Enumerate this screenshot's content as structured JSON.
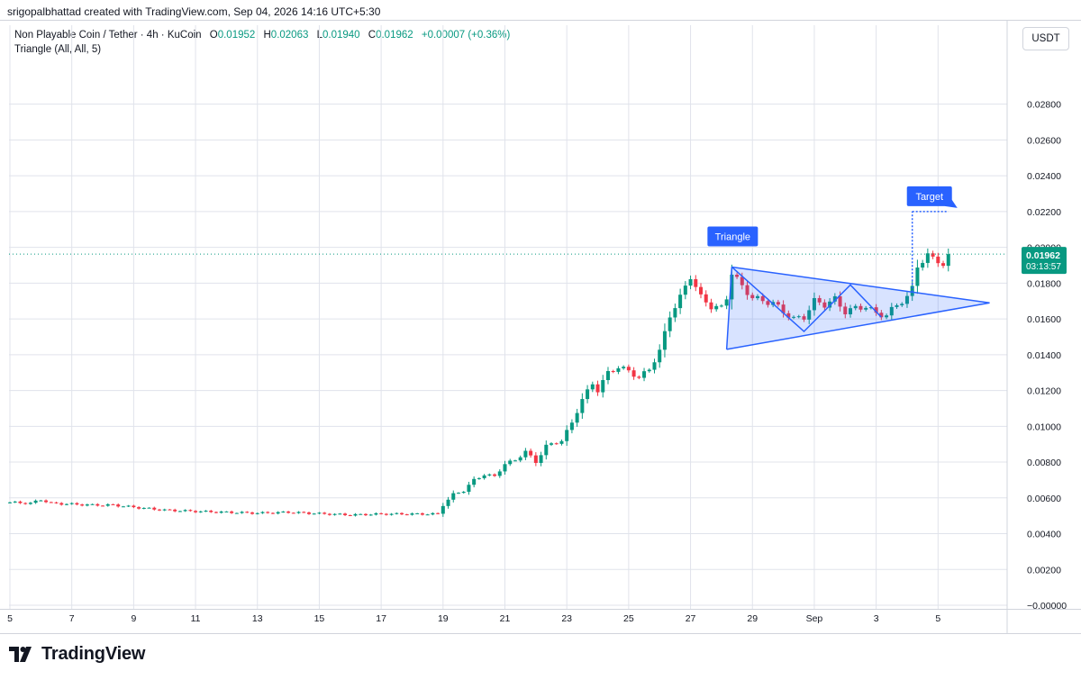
{
  "header": {
    "created_by": "srigopalbhattad created with TradingView.com, Sep 04, 2026 14:16 UTC+5:30"
  },
  "legend": {
    "symbol": "Non Playable Coin / Tether · 4h · KuCoin",
    "o_label": "O",
    "o_value": "0.01952",
    "h_label": "H",
    "h_value": "0.02063",
    "l_label": "L",
    "l_value": "0.01940",
    "c_label": "C",
    "c_value": "0.01962",
    "change": "+0.00007 (+0.36%)",
    "indicator": "Triangle (All, All, 5)"
  },
  "currency_button": "USDT",
  "price_tag": {
    "price": "0.01962",
    "countdown": "03:13:57"
  },
  "annotations": {
    "triangle_label": "Triangle",
    "target_label": "Target"
  },
  "logo_text": "TradingView",
  "colors": {
    "up": "#089981",
    "down": "#F23645",
    "pattern": "#2962FF",
    "grid": "#e0e3eb"
  },
  "chart_data": {
    "type": "candlestick",
    "symbol": "NPC/USDT",
    "timeframe": "4h",
    "x_tick_labels": [
      "5",
      "7",
      "9",
      "11",
      "13",
      "15",
      "17",
      "19",
      "21",
      "23",
      "25",
      "27",
      "29",
      "Sep",
      "3",
      "5"
    ],
    "y_tick_labels": [
      "0.02800",
      "0.02600",
      "0.02400",
      "0.02200",
      "0.02000",
      "0.01800",
      "0.01600",
      "0.01400",
      "0.01200",
      "0.01000",
      "0.00800",
      "0.00600",
      "0.00400",
      "0.00200",
      "−0.00000"
    ],
    "ylim": [
      -0.0002,
      0.0308
    ],
    "last_price": 0.01962,
    "grid": true,
    "price_path": [
      [
        0,
        0.00575
      ],
      [
        4,
        0.0057
      ],
      [
        6,
        0.0059
      ],
      [
        8,
        0.0057
      ],
      [
        12,
        0.00565
      ],
      [
        16,
        0.0056
      ],
      [
        20,
        0.0056
      ],
      [
        24,
        0.00548
      ],
      [
        30,
        0.00532
      ],
      [
        36,
        0.00525
      ],
      [
        42,
        0.0052
      ],
      [
        48,
        0.00515
      ],
      [
        54,
        0.0052
      ],
      [
        60,
        0.00512
      ],
      [
        66,
        0.00505
      ],
      [
        72,
        0.0051
      ],
      [
        83,
        0.0051
      ],
      [
        84,
        0.0056
      ],
      [
        86,
        0.0062
      ],
      [
        88,
        0.0064
      ],
      [
        90,
        0.007
      ],
      [
        92,
        0.0073
      ],
      [
        94,
        0.0072
      ],
      [
        96,
        0.0079
      ],
      [
        98,
        0.0081
      ],
      [
        100,
        0.0086
      ],
      [
        102,
        0.008
      ],
      [
        104,
        0.0089
      ],
      [
        105,
        0.009
      ],
      [
        107,
        0.0092
      ],
      [
        109,
        0.0102
      ],
      [
        111,
        0.0115
      ],
      [
        113,
        0.0124
      ],
      [
        114,
        0.012
      ],
      [
        116,
        0.013
      ],
      [
        118,
        0.0133
      ],
      [
        120,
        0.0131
      ],
      [
        122,
        0.0127
      ],
      [
        124,
        0.0132
      ],
      [
        126,
        0.0142
      ],
      [
        128,
        0.0162
      ],
      [
        130,
        0.0172
      ],
      [
        132,
        0.0184
      ],
      [
        134,
        0.0172
      ],
      [
        136,
        0.0167
      ],
      [
        138,
        0.0166
      ],
      [
        139,
        0.0172
      ],
      [
        140,
        0.0186
      ],
      [
        142,
        0.0178
      ],
      [
        144,
        0.0172
      ],
      [
        146,
        0.017
      ],
      [
        148,
        0.0169
      ],
      [
        150,
        0.0164
      ],
      [
        152,
        0.016
      ],
      [
        154,
        0.0161
      ],
      [
        156,
        0.017
      ],
      [
        158,
        0.0168
      ],
      [
        160,
        0.0171
      ],
      [
        162,
        0.0164
      ],
      [
        164,
        0.0166
      ],
      [
        166,
        0.0167
      ],
      [
        168,
        0.0163
      ],
      [
        170,
        0.0162
      ],
      [
        172,
        0.0168
      ],
      [
        174,
        0.0172
      ],
      [
        175,
        0.0177
      ],
      [
        176,
        0.019
      ],
      [
        178,
        0.0195
      ],
      [
        180,
        0.0193
      ],
      [
        181,
        0.019
      ],
      [
        182,
        0.01962
      ]
    ],
    "triangle_pattern": {
      "points": [
        [
          139,
          0.0143
        ],
        [
          140,
          0.0189
        ],
        [
          154,
          0.0153
        ],
        [
          163,
          0.0179
        ],
        [
          169,
          0.0161
        ],
        [
          190,
          0.0169
        ]
      ],
      "label": "Triangle"
    },
    "target_projection": {
      "from_price": 0.0175,
      "to_price": 0.022,
      "label": "Target"
    }
  }
}
